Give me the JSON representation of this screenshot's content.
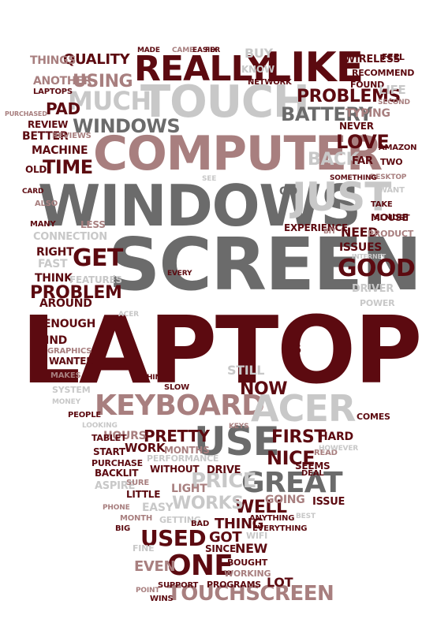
{
  "palette": {
    "dark_red": "#5c0a10",
    "gray": "#6b6b6b",
    "light_gray": "#c8c8c8",
    "rose": "#a87f7f"
  },
  "words": [
    {
      "text": "LAPTOP",
      "color": "#5c0a10"
    },
    {
      "text": "SCREEN",
      "color": "#6b6b6b"
    },
    {
      "text": "WINDOWS",
      "color": "#6b6b6b"
    },
    {
      "text": "COMPUTER",
      "color": "#a87f7f"
    },
    {
      "text": "TOUCH",
      "color": "#c8c8c8"
    },
    {
      "text": "LIKE",
      "color": "#5c0a10"
    },
    {
      "text": "REALLY",
      "color": "#5c0a10"
    },
    {
      "text": "JUST",
      "color": "#c8c8c8"
    },
    {
      "text": "KEYBOARD",
      "color": "#a87f7f"
    },
    {
      "text": "ACER",
      "color": "#c8c8c8"
    },
    {
      "text": "USE",
      "color": "#6b6b6b"
    },
    {
      "text": "GREAT",
      "color": "#6b6b6b"
    },
    {
      "text": "ONE",
      "color": "#5c0a10"
    },
    {
      "text": "GOOD",
      "color": "#5c0a10"
    },
    {
      "text": "TOUCHSCREEN",
      "color": "#a87f7f"
    },
    {
      "text": "MUCH",
      "color": "#c8c8c8"
    },
    {
      "text": "WINDOWS",
      "color": "#6b6b6b"
    },
    {
      "text": "BATTERY",
      "color": "#6b6b6b"
    },
    {
      "text": "PROBLEMS",
      "color": "#5c0a10"
    },
    {
      "text": "USING",
      "color": "#a87f7f"
    },
    {
      "text": "QUALITY",
      "color": "#5c0a10"
    },
    {
      "text": "TIME",
      "color": "#5c0a10"
    },
    {
      "text": "LOVE",
      "color": "#5c0a10"
    },
    {
      "text": "BACK",
      "color": "#c8c8c8"
    },
    {
      "text": "GET",
      "color": "#5c0a10"
    },
    {
      "text": "PROBLEM",
      "color": "#5c0a10"
    },
    {
      "text": "PRICE",
      "color": "#c8c8c8"
    },
    {
      "text": "USED",
      "color": "#5c0a10"
    },
    {
      "text": "NICE",
      "color": "#5c0a10"
    },
    {
      "text": "FIRST",
      "color": "#5c0a10"
    },
    {
      "text": "WELL",
      "color": "#5c0a10"
    },
    {
      "text": "WORKS",
      "color": "#c8c8c8"
    },
    {
      "text": "PRETTY",
      "color": "#5c0a10"
    },
    {
      "text": "NOW",
      "color": "#5c0a10"
    },
    {
      "text": "STILL",
      "color": "#c8c8c8"
    },
    {
      "text": "THING",
      "color": "#5c0a10"
    },
    {
      "text": "GOT",
      "color": "#5c0a10"
    },
    {
      "text": "EVEN",
      "color": "#a87f7f"
    },
    {
      "text": "NEW",
      "color": "#5c0a10"
    },
    {
      "text": "LIGHT",
      "color": "#a87f7f"
    },
    {
      "text": "WORK",
      "color": "#5c0a10"
    },
    {
      "text": "HOURS",
      "color": "#a87f7f"
    },
    {
      "text": "THINK",
      "color": "#5c0a10"
    },
    {
      "text": "FIND",
      "color": "#5c0a10"
    },
    {
      "text": "ENOUGH",
      "color": "#5c0a10"
    },
    {
      "text": "MACHINE",
      "color": "#5c0a10"
    },
    {
      "text": "PAD",
      "color": "#5c0a10"
    },
    {
      "text": "BETTER",
      "color": "#5c0a10"
    },
    {
      "text": "REVIEW",
      "color": "#5c0a10"
    },
    {
      "text": "ANOTHER",
      "color": "#a87f7f"
    },
    {
      "text": "THINGS",
      "color": "#a87f7f"
    },
    {
      "text": "BUY",
      "color": "#c8c8c8"
    },
    {
      "text": "KNOW",
      "color": "#c8c8c8"
    },
    {
      "text": "NETWORK",
      "color": "#5c0a10"
    },
    {
      "text": "WIRELESS",
      "color": "#5c0a10"
    },
    {
      "text": "FEEL",
      "color": "#5c0a10"
    },
    {
      "text": "RECOMMEND",
      "color": "#5c0a10"
    },
    {
      "text": "FOUND",
      "color": "#5c0a10"
    },
    {
      "text": "LIFE",
      "color": "#c8c8c8"
    },
    {
      "text": "SECOND",
      "color": "#a87f7f"
    },
    {
      "text": "TYPING",
      "color": "#a87f7f"
    },
    {
      "text": "NEVER",
      "color": "#5c0a10"
    },
    {
      "text": "AMAZON",
      "color": "#5c0a10"
    },
    {
      "text": "FAR",
      "color": "#5c0a10"
    },
    {
      "text": "TWO",
      "color": "#5c0a10"
    },
    {
      "text": "DESKTOP",
      "color": "#a87f7f"
    },
    {
      "text": "WANT",
      "color": "#c8c8c8"
    },
    {
      "text": "TAKE",
      "color": "#5c0a10"
    },
    {
      "text": "ALMOST",
      "color": "#5c0a10"
    },
    {
      "text": "SOMETHING",
      "color": "#5c0a10"
    },
    {
      "text": "MOUSE",
      "color": "#5c0a10"
    },
    {
      "text": "GO",
      "color": "#6b6b6b"
    },
    {
      "text": "NEED",
      "color": "#5c0a10"
    },
    {
      "text": "PRODUCT",
      "color": "#a87f7f"
    },
    {
      "text": "EXPERIENCE",
      "color": "#5c0a10"
    },
    {
      "text": "BIT",
      "color": "#a87f7f"
    },
    {
      "text": "ISSUES",
      "color": "#5c0a10"
    },
    {
      "text": "INTERNET",
      "color": "#c8c8c8"
    },
    {
      "text": "DRIVER",
      "color": "#c8c8c8"
    },
    {
      "text": "POWER",
      "color": "#c8c8c8"
    },
    {
      "text": "CONNECTION",
      "color": "#c8c8c8"
    },
    {
      "text": "LESS",
      "color": "#a87f7f"
    },
    {
      "text": "RIGHT",
      "color": "#5c0a10"
    },
    {
      "text": "FAST",
      "color": "#c8c8c8"
    },
    {
      "text": "FEATURES",
      "color": "#c8c8c8"
    },
    {
      "text": "AROUND",
      "color": "#5c0a10"
    },
    {
      "text": "EVERY",
      "color": "#5c0a10"
    },
    {
      "text": "ACER",
      "color": "#c8c8c8"
    },
    {
      "text": "V5",
      "color": "#5c0a10"
    },
    {
      "text": "GRAPHICS",
      "color": "#a87f7f"
    },
    {
      "text": "WANTED",
      "color": "#5c0a10"
    },
    {
      "text": "MAKES",
      "color": "#a87f7f"
    },
    {
      "text": "SYSTEM",
      "color": "#c8c8c8"
    },
    {
      "text": "MONEY",
      "color": "#c8c8c8"
    },
    {
      "text": "THIN",
      "color": "#5c0a10"
    },
    {
      "text": "SLOW",
      "color": "#5c0a10"
    },
    {
      "text": "PEOPLE",
      "color": "#5c0a10"
    },
    {
      "text": "LOOKING",
      "color": "#c8c8c8"
    },
    {
      "text": "TABLET",
      "color": "#5c0a10"
    },
    {
      "text": "KEYS",
      "color": "#a87f7f"
    },
    {
      "text": "MONTHS",
      "color": "#a87f7f"
    },
    {
      "text": "START",
      "color": "#5c0a10"
    },
    {
      "text": "PURCHASE",
      "color": "#5c0a10"
    },
    {
      "text": "PERFORMANCE",
      "color": "#c8c8c8"
    },
    {
      "text": "BACKLIT",
      "color": "#5c0a10"
    },
    {
      "text": "WITHOUT",
      "color": "#5c0a10"
    },
    {
      "text": "DRIVE",
      "color": "#5c0a10"
    },
    {
      "text": "ASPIRE",
      "color": "#c8c8c8"
    },
    {
      "text": "SURE",
      "color": "#a87f7f"
    },
    {
      "text": "LITTLE",
      "color": "#5c0a10"
    },
    {
      "text": "EASY",
      "color": "#c8c8c8"
    },
    {
      "text": "PHONE",
      "color": "#a87f7f"
    },
    {
      "text": "MONTH",
      "color": "#a87f7f"
    },
    {
      "text": "BIG",
      "color": "#5c0a10"
    },
    {
      "text": "GETTING",
      "color": "#c8c8c8"
    },
    {
      "text": "BAD",
      "color": "#5c0a10"
    },
    {
      "text": "GOING",
      "color": "#a87f7f"
    },
    {
      "text": "ISSUE",
      "color": "#5c0a10"
    },
    {
      "text": "DEAL",
      "color": "#5c0a10"
    },
    {
      "text": "SEEMS",
      "color": "#5c0a10"
    },
    {
      "text": "READ",
      "color": "#a87f7f"
    },
    {
      "text": "HARD",
      "color": "#5c0a10"
    },
    {
      "text": "HOWEVER",
      "color": "#c8c8c8"
    },
    {
      "text": "COMES",
      "color": "#5c0a10"
    },
    {
      "text": "ANYTHING",
      "color": "#5c0a10"
    },
    {
      "text": "EVERYTHING",
      "color": "#5c0a10"
    },
    {
      "text": "BEST",
      "color": "#c8c8c8"
    },
    {
      "text": "WIFI",
      "color": "#c8c8c8"
    },
    {
      "text": "SINCE",
      "color": "#5c0a10"
    },
    {
      "text": "FINE",
      "color": "#c8c8c8"
    },
    {
      "text": "BOUGHT",
      "color": "#5c0a10"
    },
    {
      "text": "WORKING",
      "color": "#a87f7f"
    },
    {
      "text": "LOT",
      "color": "#5c0a10"
    },
    {
      "text": "PROGRAMS",
      "color": "#5c0a10"
    },
    {
      "text": "SUPPORT",
      "color": "#5c0a10"
    },
    {
      "text": "POINT",
      "color": "#a87f7f"
    },
    {
      "text": "WINS",
      "color": "#5c0a10"
    },
    {
      "text": "MADE",
      "color": "#5c0a10"
    },
    {
      "text": "CAME",
      "color": "#a87f7f"
    },
    {
      "text": "EASIER",
      "color": "#5c0a10"
    },
    {
      "text": "FIX",
      "color": "#5c0a10"
    },
    {
      "text": "LAPTOPS",
      "color": "#5c0a10"
    },
    {
      "text": "PURCHASED",
      "color": "#a87f7f"
    },
    {
      "text": "REVIEWS",
      "color": "#a87f7f"
    },
    {
      "text": "OLD",
      "color": "#5c0a10"
    },
    {
      "text": "SEE",
      "color": "#c8c8c8"
    },
    {
      "text": "CARD",
      "color": "#5c0a10"
    },
    {
      "text": "ALSO",
      "color": "#a87f7f"
    },
    {
      "text": "MANY",
      "color": "#5c0a10"
    }
  ]
}
